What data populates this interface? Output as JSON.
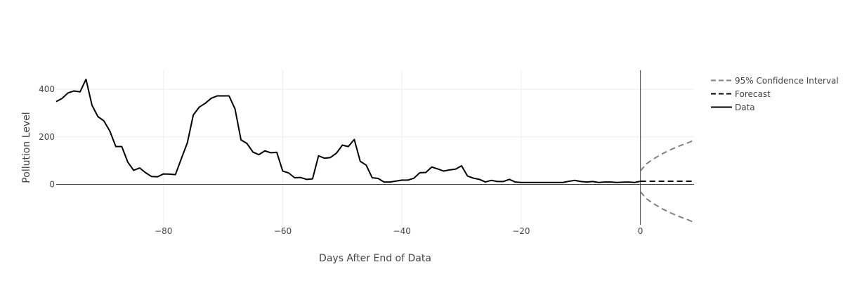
{
  "chart_data": {
    "type": "line",
    "title": "",
    "xlabel": "Days After End of Data",
    "ylabel": "Pollution Level",
    "xlim": [
      -98,
      9
    ],
    "ylim": [
      -170,
      480
    ],
    "grid": true,
    "legend_position": "top-right",
    "x_ticks": [
      -80,
      -60,
      -40,
      -20,
      0
    ],
    "y_ticks": [
      0,
      200,
      400
    ],
    "x_tick_labels": [
      "−80",
      "−60",
      "−40",
      "−20",
      "0"
    ],
    "y_tick_labels": [
      "0",
      "200",
      "400"
    ],
    "legend": [
      "95% Confidence Interval",
      "Forecast",
      "Data"
    ],
    "series": [
      {
        "name": "Data",
        "color": "#000000",
        "dash": "solid",
        "x": [
          -98,
          -97,
          -96,
          -95,
          -94,
          -93,
          -92,
          -91,
          -90,
          -89,
          -88,
          -87,
          -86,
          -85,
          -84,
          -83,
          -82,
          -81,
          -80,
          -79,
          -78,
          -77,
          -76,
          -75,
          -74,
          -73,
          -72,
          -71,
          -70,
          -69,
          -68,
          -67,
          -66,
          -65,
          -64,
          -63,
          -62,
          -61,
          -60,
          -59,
          -58,
          -57,
          -56,
          -55,
          -54,
          -53,
          -52,
          -51,
          -50,
          -49,
          -48,
          -47,
          -46,
          -45,
          -44,
          -43,
          -42,
          -41,
          -40,
          -39,
          -38,
          -37,
          -36,
          -35,
          -34,
          -33,
          -32,
          -31,
          -30,
          -29,
          -28,
          -27,
          -26,
          -25,
          -24,
          -23,
          -22,
          -21,
          -20,
          -19,
          -18,
          -17,
          -16,
          -15,
          -14,
          -13,
          -12,
          -11,
          -10,
          -9,
          -8,
          -7,
          -6,
          -5,
          -4,
          -3,
          -2,
          -1,
          0
        ],
        "y": [
          348,
          362,
          385,
          393,
          389,
          442,
          333,
          285,
          267,
          224,
          159,
          159,
          94,
          59,
          69,
          49,
          33,
          32,
          44,
          43,
          41,
          109,
          175,
          292,
          325,
          341,
          362,
          372,
          372,
          372,
          317,
          187,
          172,
          136,
          125,
          141,
          133,
          135,
          56,
          48,
          28,
          29,
          21,
          23,
          120,
          110,
          113,
          131,
          165,
          159,
          189,
          97,
          81,
          28,
          25,
          10,
          10,
          14,
          18,
          18,
          26,
          49,
          50,
          73,
          65,
          56,
          61,
          64,
          78,
          35,
          26,
          21,
          10,
          17,
          12,
          12,
          21,
          10,
          8,
          8,
          8,
          8,
          8,
          8,
          8,
          8,
          13,
          17,
          12,
          10,
          12,
          8,
          10,
          10,
          8,
          9,
          10,
          8,
          13
        ]
      },
      {
        "name": "Forecast",
        "color": "#000000",
        "dash": "dash",
        "x": [
          0,
          9
        ],
        "y": [
          13,
          13
        ]
      },
      {
        "name": "95% Confidence Interval",
        "color": "#808080",
        "dash": "dash",
        "x": [
          0,
          1,
          2,
          3,
          4,
          5,
          6,
          7,
          8,
          9
        ],
        "upper": [
          57,
          86,
          104,
          119,
          133,
          145,
          156,
          166,
          175,
          186
        ],
        "lower": [
          -31,
          -60,
          -78,
          -93,
          -107,
          -119,
          -130,
          -140,
          -149,
          -160
        ]
      }
    ]
  }
}
